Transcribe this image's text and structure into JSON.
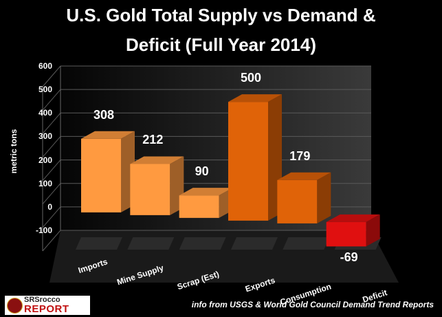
{
  "title_line1": "U.S. Gold Total Supply vs Demand &",
  "title_line2": "Deficit (Full Year 2014)",
  "source": "info from USGS & World Gold Council Demand Trend Reports",
  "logo": {
    "line1": "SRSrocco",
    "line2": "REPORT"
  },
  "colors": {
    "supply": "#FF9A40",
    "demand": "#E06308",
    "deficit": "#E01010",
    "background": "#000000"
  },
  "chart_data": {
    "type": "bar",
    "title": "U.S. Gold Total Supply vs Demand & Deficit (Full Year 2014)",
    "xlabel": "",
    "ylabel": "metric tons",
    "ylim": [
      -100,
      600
    ],
    "yticks": [
      "-100",
      "0",
      "100",
      "200",
      "300",
      "400",
      "500",
      "600"
    ],
    "categories": [
      "Imports",
      "Mine Supply",
      "Scrap (Est)",
      "Exports",
      "Consumption",
      "Deficit"
    ],
    "values": [
      308,
      212,
      90,
      500,
      179,
      -69
    ],
    "value_labels": [
      "308",
      "212",
      "90",
      "500",
      "179",
      "-69"
    ],
    "bar_colors": [
      "#FF9A40",
      "#FF9A40",
      "#FF9A40",
      "#E06308",
      "#E06308",
      "#E01010"
    ],
    "grid": true,
    "style": "3d"
  }
}
